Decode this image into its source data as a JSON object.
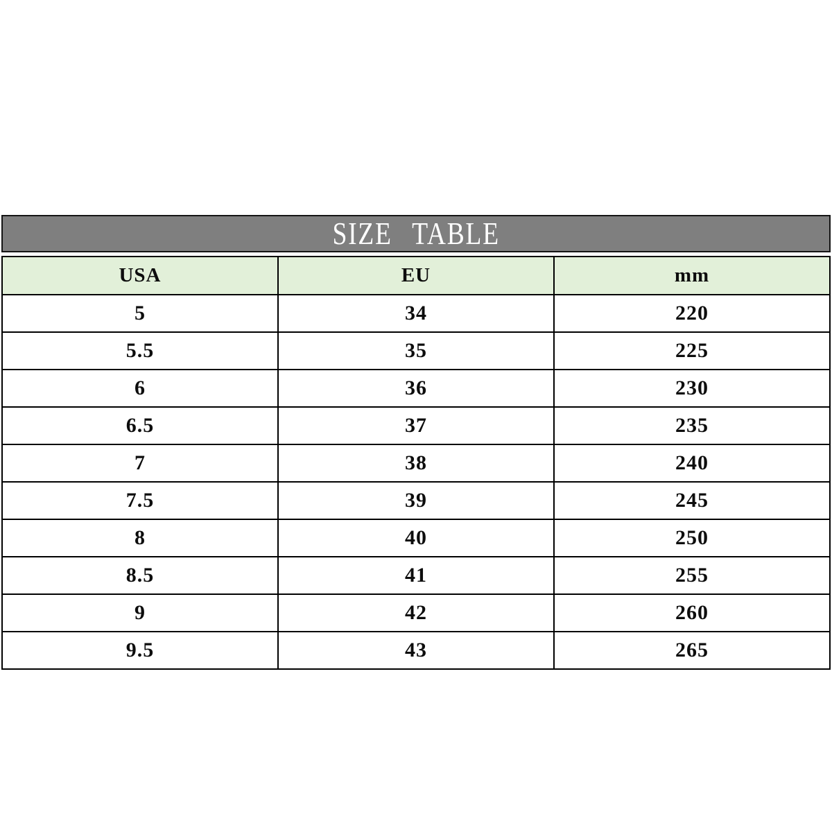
{
  "page": {
    "background_color": "#ffffff"
  },
  "title_bar": {
    "label": "SIZE TABLE",
    "background_color": "#7f7f7f",
    "text_color": "#ffffff",
    "border_color": "#141414"
  },
  "size_table": {
    "border_color": "#000000",
    "header": {
      "background_color": "#e2f0d9",
      "columns": {
        "usa": "USA",
        "eu": "EU",
        "mm": "mm"
      }
    },
    "rows": [
      {
        "usa": "5",
        "eu": "34",
        "mm": "220"
      },
      {
        "usa": "5.5",
        "eu": "35",
        "mm": "225"
      },
      {
        "usa": "6",
        "eu": "36",
        "mm": "230"
      },
      {
        "usa": "6.5",
        "eu": "37",
        "mm": "235"
      },
      {
        "usa": "7",
        "eu": "38",
        "mm": "240"
      },
      {
        "usa": "7.5",
        "eu": "39",
        "mm": "245"
      },
      {
        "usa": "8",
        "eu": "40",
        "mm": "250"
      },
      {
        "usa": "8.5",
        "eu": "41",
        "mm": "255"
      },
      {
        "usa": "9",
        "eu": "42",
        "mm": "260"
      },
      {
        "usa": "9.5",
        "eu": "43",
        "mm": "265"
      }
    ]
  },
  "chart_data": {
    "type": "table",
    "title": "SIZE TABLE",
    "columns": [
      "USA",
      "EU",
      "mm"
    ],
    "rows": [
      [
        5,
        34,
        220
      ],
      [
        5.5,
        35,
        225
      ],
      [
        6,
        36,
        230
      ],
      [
        6.5,
        37,
        235
      ],
      [
        7,
        38,
        240
      ],
      [
        7.5,
        39,
        245
      ],
      [
        8,
        40,
        250
      ],
      [
        8.5,
        41,
        255
      ],
      [
        9,
        42,
        260
      ],
      [
        9.5,
        43,
        265
      ]
    ],
    "layout": {
      "title_bar_background": "#7f7f7f",
      "header_background": "#e2f0d9",
      "grid": "black solid borders",
      "column_widths": "equal thirds"
    }
  }
}
